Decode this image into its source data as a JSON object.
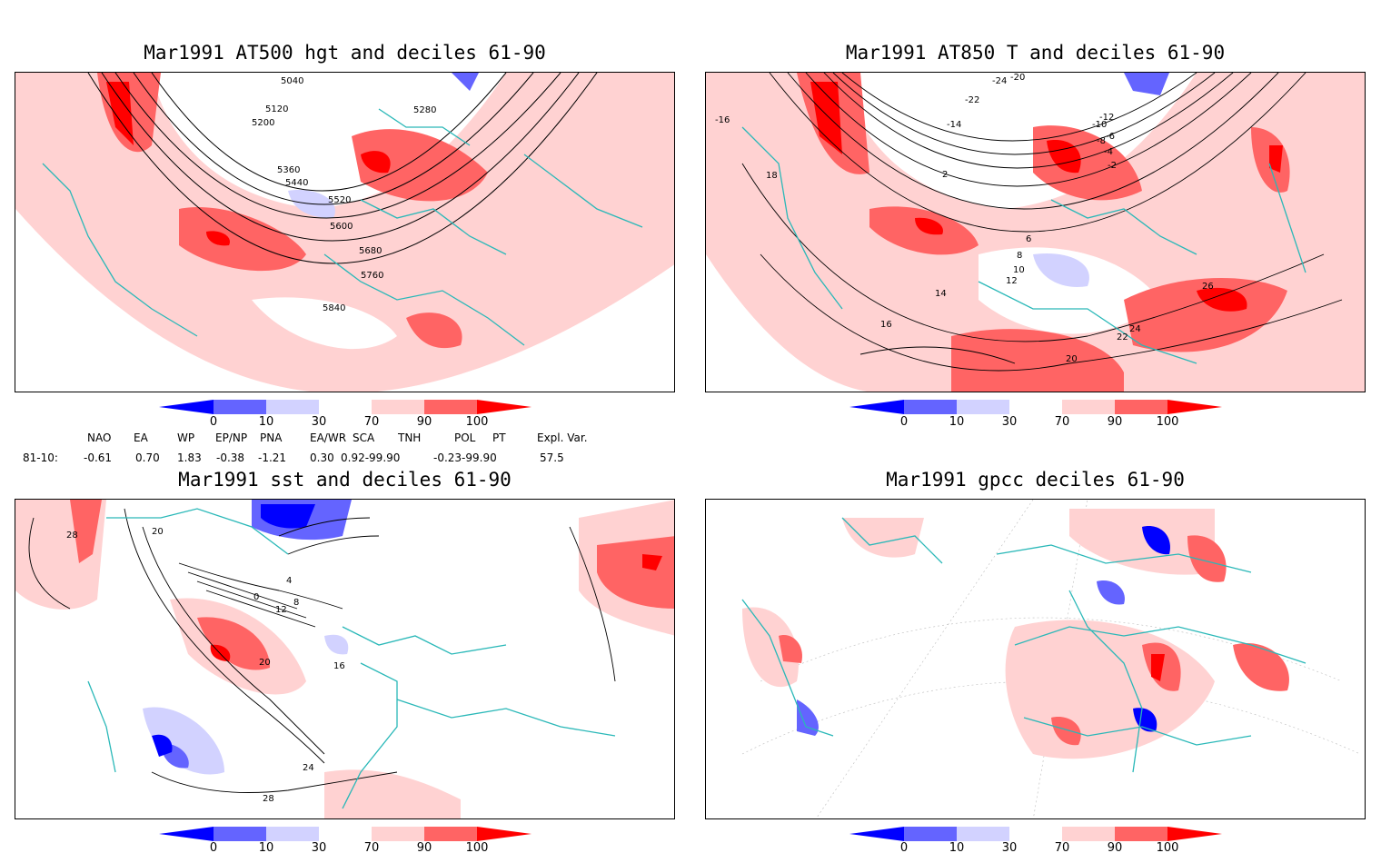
{
  "panels": [
    {
      "title": "Mar1991 AT500 hgt and deciles 61-90",
      "contour_labels": [
        "5040",
        "5120",
        "5200",
        "5280",
        "5360",
        "5440",
        "5520",
        "5600",
        "5680",
        "5760",
        "5840"
      ]
    },
    {
      "title": "Mar1991 AT850 T and deciles 61-90",
      "contour_labels": [
        "-24",
        "-22",
        "-20",
        "-16",
        "-14",
        "-12",
        "-10",
        "-8",
        "-6",
        "-4",
        "-2",
        "2",
        "6",
        "8",
        "10",
        "12",
        "14",
        "16",
        "18",
        "20",
        "22",
        "24",
        "26"
      ]
    },
    {
      "title": "Mar1991 sst and deciles 61-90",
      "contour_labels": [
        "28",
        "20",
        "0",
        "4",
        "8",
        "12",
        "16",
        "20",
        "24",
        "28"
      ]
    },
    {
      "title": "Mar1991 gpcc deciles 61-90",
      "contour_labels": []
    }
  ],
  "colorbar": {
    "ticks": [
      "0",
      "10",
      "30",
      "70",
      "90",
      "100"
    ],
    "colors": [
      "#0000ff",
      "#6464ff",
      "#d2d2ff",
      "#ffffff",
      "#ffd2d2",
      "#ff6464",
      "#ff0000"
    ]
  },
  "indices": {
    "headers": [
      "NAO",
      "EA",
      "WP",
      "EP/NP",
      "PNA",
      "EA/WR",
      "SCA",
      "TNH",
      "POL",
      "PT",
      "Expl. Var."
    ],
    "row_label": "81-10:",
    "values": [
      "-0.61",
      "0.70",
      "1.83",
      "-0.38",
      "-1.21",
      "0.30",
      "0.92-99.90",
      "-0.23-99.90",
      "57.5"
    ]
  },
  "map_colors": {
    "coast": "#2ab8b8",
    "contour": "#000000"
  }
}
